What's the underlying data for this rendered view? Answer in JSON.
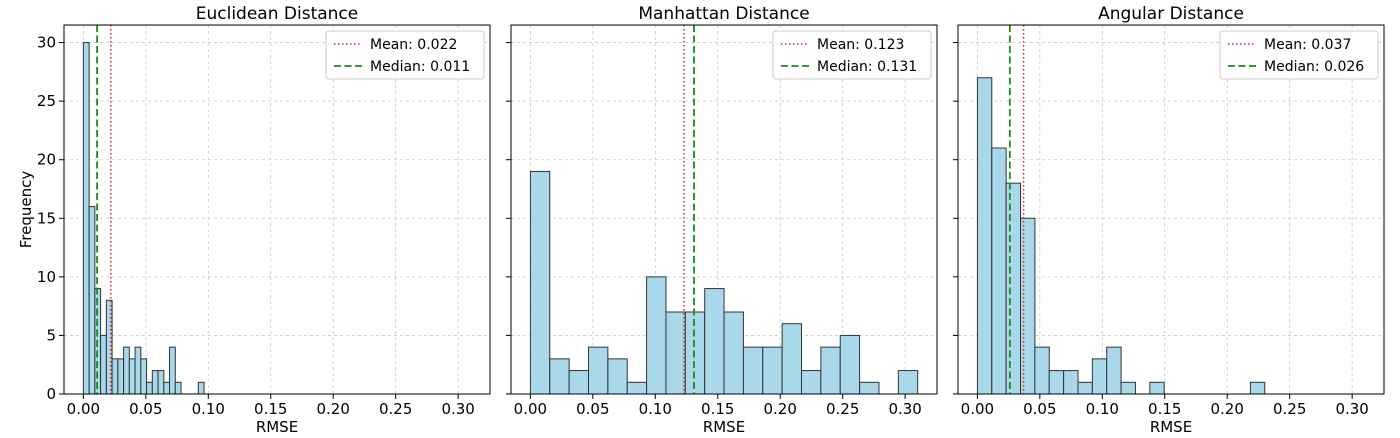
{
  "chart_data": [
    {
      "type": "bar",
      "title": "Euclidean Distance",
      "xlabel": "RMSE",
      "ylabel": "Frequency",
      "xlim": [
        -0.0155,
        0.3255
      ],
      "ylim": [
        0,
        31.5
      ],
      "xticks": [
        "0.00",
        "0.05",
        "0.10",
        "0.15",
        "0.20",
        "0.25",
        "0.30"
      ],
      "yticks": [
        "0",
        "5",
        "10",
        "15",
        "20",
        "25",
        "30"
      ],
      "grid": true,
      "legend_position": "top-right",
      "bin_width": 0.0046,
      "bins": [
        {
          "x": 0.0023,
          "count": 30
        },
        {
          "x": 0.0069,
          "count": 16
        },
        {
          "x": 0.0115,
          "count": 9
        },
        {
          "x": 0.0161,
          "count": 5
        },
        {
          "x": 0.0207,
          "count": 8
        },
        {
          "x": 0.0253,
          "count": 3
        },
        {
          "x": 0.0299,
          "count": 3
        },
        {
          "x": 0.0345,
          "count": 4
        },
        {
          "x": 0.0391,
          "count": 3
        },
        {
          "x": 0.0437,
          "count": 4
        },
        {
          "x": 0.0483,
          "count": 3
        },
        {
          "x": 0.0529,
          "count": 1
        },
        {
          "x": 0.0575,
          "count": 2
        },
        {
          "x": 0.0621,
          "count": 2
        },
        {
          "x": 0.0667,
          "count": 1
        },
        {
          "x": 0.0713,
          "count": 4
        },
        {
          "x": 0.0759,
          "count": 1
        },
        {
          "x": 0.0943,
          "count": 1
        }
      ],
      "mean": {
        "value": 0.022,
        "label": "Mean: 0.022"
      },
      "median": {
        "value": 0.011,
        "label": "Median: 0.011"
      }
    },
    {
      "type": "bar",
      "title": "Manhattan Distance",
      "xlabel": "RMSE",
      "ylabel": "",
      "xlim": [
        -0.0155,
        0.3255
      ],
      "ylim": [
        0,
        31.5
      ],
      "xticks": [
        "0.00",
        "0.05",
        "0.10",
        "0.15",
        "0.20",
        "0.25",
        "0.30"
      ],
      "yticks": [
        "0",
        "5",
        "10",
        "15",
        "20",
        "25",
        "30"
      ],
      "grid": true,
      "legend_position": "top-right",
      "bin_width": 0.0155,
      "bins": [
        {
          "x": 0.0078,
          "count": 19
        },
        {
          "x": 0.0233,
          "count": 3
        },
        {
          "x": 0.0388,
          "count": 2
        },
        {
          "x": 0.0543,
          "count": 4
        },
        {
          "x": 0.0698,
          "count": 3
        },
        {
          "x": 0.0853,
          "count": 1
        },
        {
          "x": 0.1008,
          "count": 10
        },
        {
          "x": 0.1163,
          "count": 7
        },
        {
          "x": 0.1318,
          "count": 7
        },
        {
          "x": 0.1473,
          "count": 9
        },
        {
          "x": 0.1628,
          "count": 7
        },
        {
          "x": 0.1783,
          "count": 4
        },
        {
          "x": 0.1938,
          "count": 4
        },
        {
          "x": 0.2093,
          "count": 6
        },
        {
          "x": 0.2248,
          "count": 2
        },
        {
          "x": 0.2403,
          "count": 4
        },
        {
          "x": 0.2558,
          "count": 5
        },
        {
          "x": 0.2713,
          "count": 1
        },
        {
          "x": 0.3023,
          "count": 2
        }
      ],
      "mean": {
        "value": 0.123,
        "label": "Mean: 0.123"
      },
      "median": {
        "value": 0.131,
        "label": "Median: 0.131"
      }
    },
    {
      "type": "bar",
      "title": "Angular Distance",
      "xlabel": "RMSE",
      "ylabel": "",
      "xlim": [
        -0.0155,
        0.3255
      ],
      "ylim": [
        0,
        31.5
      ],
      "xticks": [
        "0.00",
        "0.05",
        "0.10",
        "0.15",
        "0.20",
        "0.25",
        "0.30"
      ],
      "yticks": [
        "0",
        "5",
        "10",
        "15",
        "20",
        "25",
        "30"
      ],
      "grid": true,
      "legend_position": "top-right",
      "bin_width": 0.0115,
      "bins": [
        {
          "x": 0.0058,
          "count": 27
        },
        {
          "x": 0.0173,
          "count": 21
        },
        {
          "x": 0.0288,
          "count": 18
        },
        {
          "x": 0.0403,
          "count": 15
        },
        {
          "x": 0.0518,
          "count": 4
        },
        {
          "x": 0.0633,
          "count": 2
        },
        {
          "x": 0.0748,
          "count": 2
        },
        {
          "x": 0.0863,
          "count": 1
        },
        {
          "x": 0.0978,
          "count": 3
        },
        {
          "x": 0.1093,
          "count": 4
        },
        {
          "x": 0.1208,
          "count": 1
        },
        {
          "x": 0.1438,
          "count": 1
        },
        {
          "x": 0.2243,
          "count": 1
        }
      ],
      "mean": {
        "value": 0.037,
        "label": "Mean: 0.037"
      },
      "median": {
        "value": 0.026,
        "label": "Median: 0.026"
      }
    }
  ],
  "colors": {
    "bar_fill": "#a8d8ea",
    "bar_edge": "#333333",
    "mean_line": "#d62728",
    "median_line": "#1a8a1a",
    "grid": "#c8c8c8"
  }
}
